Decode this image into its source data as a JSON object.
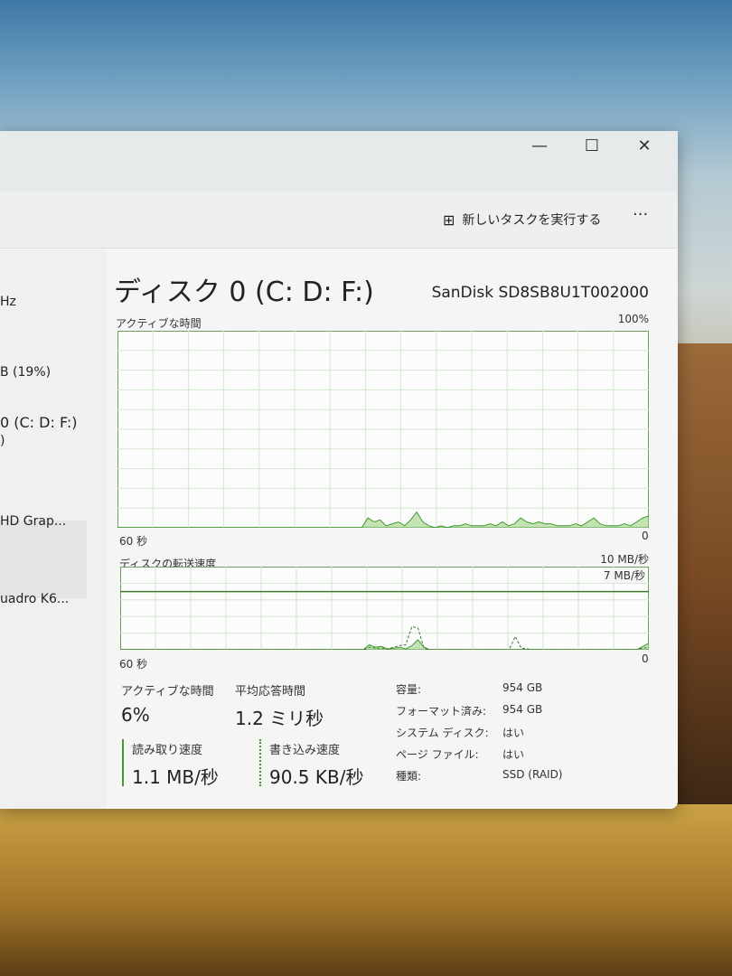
{
  "window": {
    "minimize": "—",
    "maximize": "☐",
    "close": "✕"
  },
  "toolbar": {
    "run_task_label": "新しいタスクを実行する",
    "more_label": "···"
  },
  "sidebar": {
    "items": [
      "Hz",
      "B (19%)",
      "0 (C: D: F:)",
      ")",
      "HD Grap...",
      "uadro K6..."
    ]
  },
  "main": {
    "title": "ディスク 0 (C: D: F:)",
    "model": "SanDisk SD8SB8U1T002000",
    "active_graph": {
      "label": "アクティブな時間",
      "max": "100%",
      "time_left": "60 秒",
      "time_right": "0",
      "values": [
        0,
        0,
        0,
        0,
        0,
        0,
        0,
        0,
        0,
        0,
        0,
        0,
        0,
        0,
        0,
        0,
        0,
        0,
        0,
        0,
        0,
        0,
        0,
        0,
        0,
        0,
        0,
        0,
        0,
        0,
        0,
        0,
        0,
        0,
        0,
        0,
        0,
        0,
        0,
        0,
        0,
        5,
        3,
        4,
        1,
        2,
        3,
        1,
        4,
        8,
        3,
        1,
        0,
        1,
        0,
        1,
        1,
        2,
        1,
        1,
        1,
        2,
        1,
        3,
        1,
        2,
        5,
        3,
        2,
        3,
        2,
        2,
        1,
        1,
        1,
        2,
        1,
        3,
        5,
        2,
        1,
        1,
        1,
        2,
        1,
        3,
        5,
        6
      ],
      "color": "#3f9a2e"
    },
    "transfer_graph": {
      "label": "ディスクの転送速度",
      "max": "10 MB/秒",
      "ref_line": "7 MB/秒",
      "time_left": "60 秒",
      "time_right": "0",
      "read_values": [
        0,
        0,
        0,
        0,
        0,
        0,
        0,
        0,
        0,
        0,
        0,
        0,
        0,
        0,
        0,
        0,
        0,
        0,
        0,
        0,
        0,
        0,
        0,
        0,
        0,
        0,
        0,
        0,
        0,
        0,
        0,
        0,
        0,
        0,
        0,
        0,
        0,
        0,
        0,
        0,
        0,
        0.6,
        0.3,
        0.4,
        0.1,
        0.2,
        0.3,
        0.1,
        0.5,
        1.2,
        0.3,
        0,
        0,
        0,
        0,
        0,
        0,
        0,
        0,
        0,
        0,
        0,
        0,
        0,
        0,
        0,
        0,
        0,
        0,
        0,
        0,
        0,
        0,
        0,
        0,
        0,
        0,
        0,
        0,
        0,
        0,
        0,
        0,
        0,
        0,
        0,
        0.4,
        0.8
      ],
      "write_values": [
        0,
        0,
        0,
        0,
        0,
        0,
        0,
        0,
        0,
        0,
        0,
        0,
        0,
        0,
        0,
        0,
        0,
        0,
        0,
        0,
        0,
        0,
        0,
        0,
        0,
        0,
        0,
        0,
        0,
        0,
        0,
        0,
        0,
        0,
        0,
        0,
        0,
        0,
        0,
        0,
        0,
        0.3,
        0.2,
        0.2,
        0.1,
        0.3,
        0.5,
        0.6,
        2.8,
        2.6,
        0.2,
        0,
        0,
        0,
        0,
        0,
        0,
        0,
        0,
        0,
        0,
        0,
        0,
        0,
        0,
        1.6,
        0.2,
        0.1,
        0,
        0,
        0,
        0,
        0,
        0,
        0,
        0,
        0,
        0,
        0,
        0,
        0,
        0,
        0,
        0,
        0,
        0,
        0.2,
        0.3
      ]
    },
    "stats": {
      "active_label": "アクティブな時間",
      "active_value": "6%",
      "response_label": "平均応答時間",
      "response_value": "1.2 ミリ秒",
      "read_label": "読み取り速度",
      "read_value": "1.1 MB/秒",
      "write_label": "書き込み速度",
      "write_value": "90.5 KB/秒"
    },
    "properties": [
      {
        "k": "容量:",
        "v": "954 GB"
      },
      {
        "k": "フォーマット済み:",
        "v": "954 GB"
      },
      {
        "k": "システム ディスク:",
        "v": "はい"
      },
      {
        "k": "ページ ファイル:",
        "v": "はい"
      },
      {
        "k": "種類:",
        "v": "SSD (RAID)"
      }
    ]
  }
}
